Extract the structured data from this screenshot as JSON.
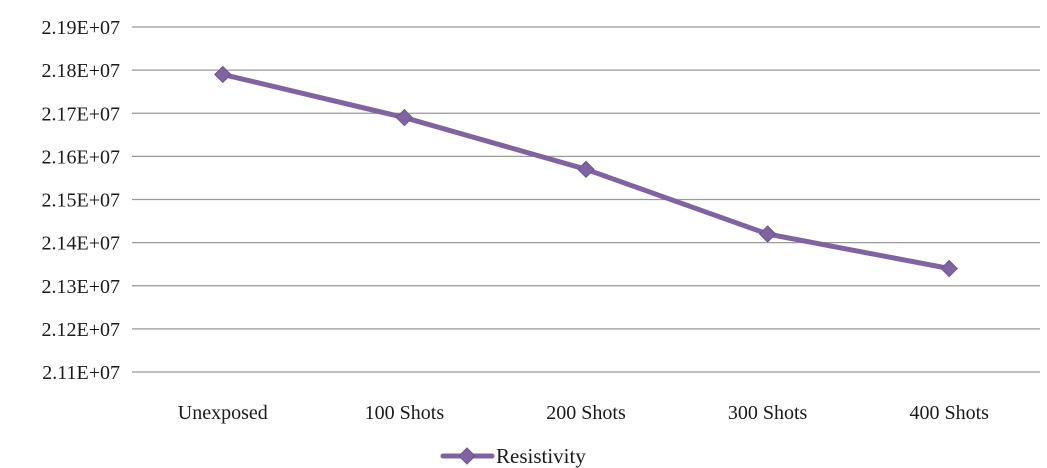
{
  "chart_data": {
    "type": "line",
    "categories": [
      "Unexposed",
      "100 Shots",
      "200 Shots",
      "300 Shots",
      "400 Shots"
    ],
    "series": [
      {
        "name": "Resistivity",
        "values": [
          21790000,
          21690000,
          21570000,
          21420000,
          21340000
        ]
      }
    ],
    "title": "",
    "xlabel": "",
    "ylabel": "",
    "ylim": [
      21100000,
      21900000
    ],
    "y_ticks": [
      "2.11E+07",
      "2.12E+07",
      "2.13E+07",
      "2.14E+07",
      "2.15E+07",
      "2.16E+07",
      "2.17E+07",
      "2.18E+07",
      "2.19E+07"
    ],
    "y_tick_values": [
      21100000,
      21200000,
      21300000,
      21400000,
      21500000,
      21600000,
      21700000,
      21800000,
      21900000
    ],
    "grid": true,
    "legend_position": "bottom",
    "colors": {
      "series": "#8064a2",
      "grid": "#9a9a9a"
    },
    "marker": "diamond"
  }
}
